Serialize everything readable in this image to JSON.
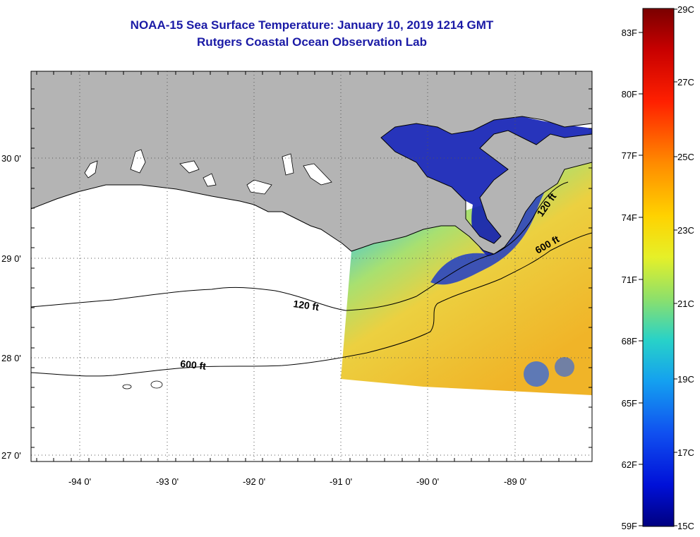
{
  "title_line1": "NOAA-15 Sea Surface Temperature:  January 10, 2019 1214 GMT",
  "title_line2": "Rutgers Coastal Ocean Observation Lab",
  "lat_labels": [
    "30 0'",
    "29 0'",
    "28 0'",
    "27 0'"
  ],
  "lon_labels": [
    "-94 0'",
    "-93 0'",
    "-92 0'",
    "-91 0'",
    "-90 0'",
    "-89 0'"
  ],
  "contours": {
    "label_120_west": "120 ft",
    "label_600_west": "600 ft",
    "label_120_east": "120 ft",
    "label_600_east": "600 ft"
  },
  "colorbar": {
    "fahrenheit": [
      "83F",
      "80F",
      "77F",
      "74F",
      "71F",
      "68F",
      "65F",
      "62F",
      "59F"
    ],
    "celsius": [
      "29C",
      "27C",
      "25C",
      "23C",
      "21C",
      "19C",
      "17C",
      "15C"
    ]
  },
  "colors": {
    "land": "#b4b4b4",
    "title": "#1a1aa6"
  }
}
